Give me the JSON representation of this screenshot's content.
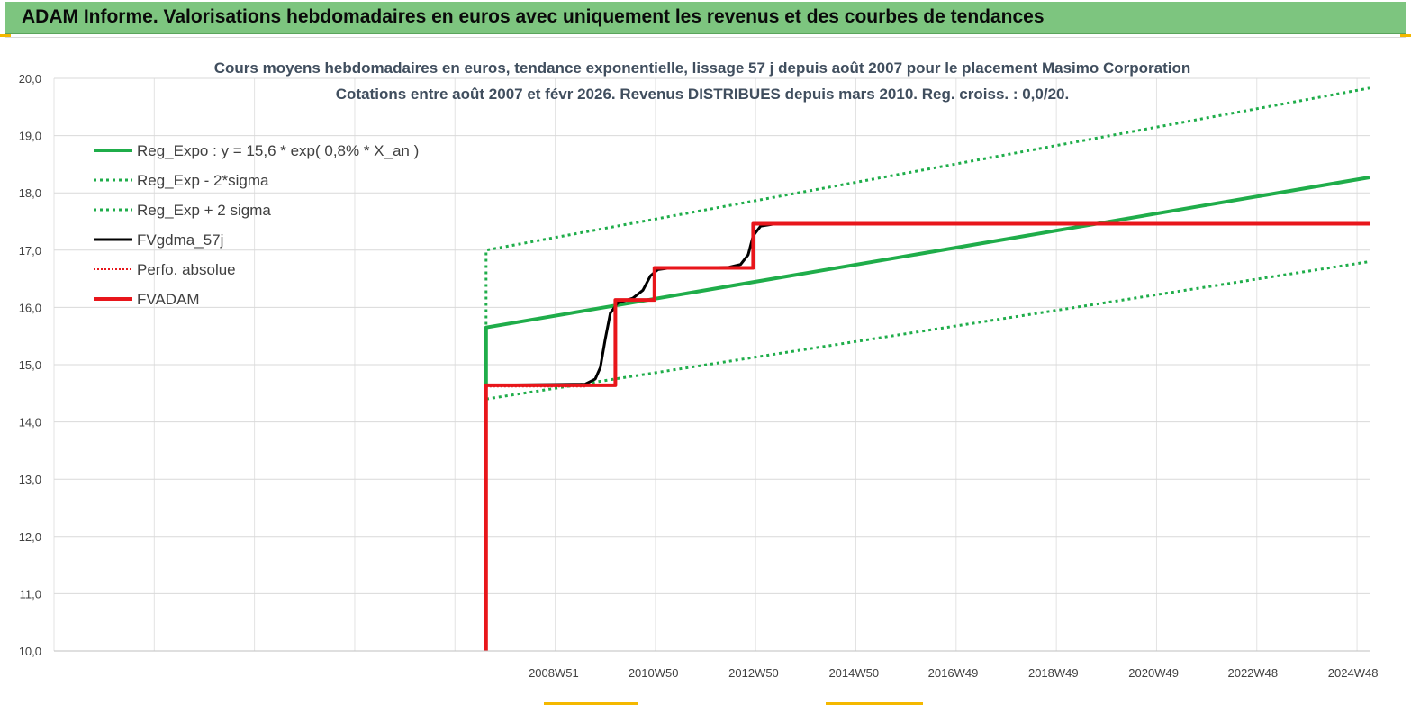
{
  "header": {
    "title": "ADAM Informe. Valorisations hebdomadaires en euros avec uniquement les revenus et des courbes de tendances",
    "background": "#7dc57f"
  },
  "chart_data": {
    "type": "line",
    "title": "Cours moyens hebdomadaires en euros, tendance exponentielle, lissage 57 j depuis août 2007 pour le placement Masimo Corporation",
    "subtitle": "Cotations entre août 2007 et févr 2026. Revenus DISTRIBUES depuis mars 2010. Reg. croiss. : 0,0/20.",
    "xlabel": "",
    "ylabel": "",
    "ylim": [
      10,
      20
    ],
    "y_ticks": [
      "10,0",
      "11,0",
      "12,0",
      "13,0",
      "14,0",
      "15,0",
      "16,0",
      "17,0",
      "18,0",
      "19,0",
      "20,0"
    ],
    "xlim": [
      1999.0,
      2025.25
    ],
    "x_ticks": [
      {
        "label": "2008W51",
        "x": 2008.97
      },
      {
        "label": "2010W50",
        "x": 2010.96
      },
      {
        "label": "2012W50",
        "x": 2012.96
      },
      {
        "label": "2014W50",
        "x": 2014.96
      },
      {
        "label": "2016W49",
        "x": 2016.94
      },
      {
        "label": "2018W49",
        "x": 2018.94
      },
      {
        "label": "2020W49",
        "x": 2020.94
      },
      {
        "label": "2022W48",
        "x": 2022.92
      },
      {
        "label": "2024W48",
        "x": 2024.92
      }
    ],
    "grid": true,
    "legend_position": "top-left",
    "series": [
      {
        "name": "Reg_Expo : y = 15,6 * exp( 0,8% *  X_an )",
        "color": "#1fad4a",
        "style": "solid",
        "width": 4,
        "points": [
          [
            2007.62,
            14.6
          ],
          [
            2007.62,
            15.65
          ],
          [
            2025.25,
            18.27
          ]
        ]
      },
      {
        "name": "Reg_Exp - 2*sigma",
        "color": "#1fad4a",
        "style": "dotted",
        "width": 3,
        "points": [
          [
            2007.62,
            10.0
          ],
          [
            2007.62,
            14.4
          ],
          [
            2025.25,
            16.8
          ]
        ]
      },
      {
        "name": "Reg_Exp + 2 sigma",
        "color": "#1fad4a",
        "style": "dotted",
        "width": 3,
        "points": [
          [
            2007.62,
            15.7
          ],
          [
            2007.62,
            17.0
          ],
          [
            2025.25,
            19.83
          ]
        ]
      },
      {
        "name": "FVgdma_57j",
        "color": "#000000",
        "style": "solid",
        "width": 3,
        "points": [
          [
            2007.62,
            10.0
          ],
          [
            2007.62,
            14.64
          ],
          [
            2009.6,
            14.66
          ],
          [
            2009.8,
            14.75
          ],
          [
            2009.9,
            14.95
          ],
          [
            2010.0,
            15.45
          ],
          [
            2010.1,
            15.9
          ],
          [
            2010.25,
            16.08
          ],
          [
            2010.55,
            16.16
          ],
          [
            2010.75,
            16.3
          ],
          [
            2010.9,
            16.55
          ],
          [
            2011.05,
            16.66
          ],
          [
            2011.3,
            16.69
          ],
          [
            2012.45,
            16.7
          ],
          [
            2012.7,
            16.75
          ],
          [
            2012.85,
            16.92
          ],
          [
            2012.95,
            17.25
          ],
          [
            2013.1,
            17.42
          ],
          [
            2013.4,
            17.46
          ],
          [
            2025.25,
            17.46
          ]
        ]
      },
      {
        "name": "Perfo. absolue",
        "color": "#e8161b",
        "style": "dotted",
        "width": 2,
        "points": [
          [
            2007.62,
            14.62
          ],
          [
            2009.6,
            14.62
          ]
        ]
      },
      {
        "name": "FVADAM",
        "color": "#e8161b",
        "style": "solid",
        "width": 4,
        "points": [
          [
            2007.62,
            10.0
          ],
          [
            2007.62,
            14.64
          ],
          [
            2010.2,
            14.64
          ],
          [
            2010.2,
            16.13
          ],
          [
            2010.98,
            16.13
          ],
          [
            2010.98,
            16.69
          ],
          [
            2012.95,
            16.69
          ],
          [
            2012.95,
            17.46
          ],
          [
            2025.25,
            17.46
          ]
        ]
      }
    ]
  }
}
